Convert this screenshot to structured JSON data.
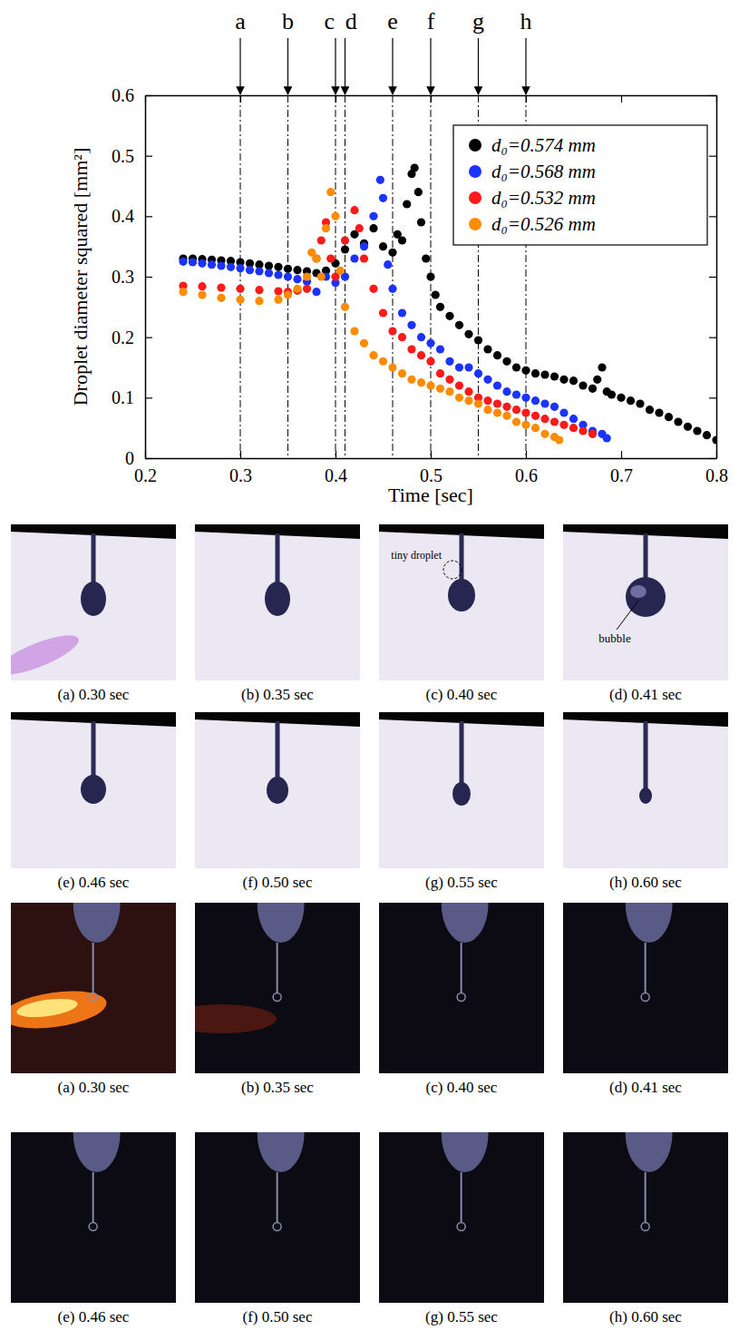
{
  "chart_data": {
    "type": "scatter",
    "xlabel": "Time [sec]",
    "ylabel": "Droplet diameter squared [mm²]",
    "xlim": [
      0.2,
      0.8
    ],
    "ylim": [
      0,
      0.6
    ],
    "xticks": [
      0.2,
      0.3,
      0.4,
      0.5,
      0.6,
      0.7,
      0.8
    ],
    "yticks": [
      0,
      0.1,
      0.2,
      0.3,
      0.4,
      0.5,
      0.6
    ],
    "legend": "upper right",
    "marker": "circle",
    "series": [
      {
        "name": "d₀=0.574 mm",
        "color": "#000000",
        "x": [
          0.24,
          0.25,
          0.26,
          0.27,
          0.28,
          0.29,
          0.3,
          0.31,
          0.32,
          0.33,
          0.34,
          0.35,
          0.36,
          0.37,
          0.38,
          0.39,
          0.4,
          0.41,
          0.42,
          0.43,
          0.44,
          0.45,
          0.46,
          0.465,
          0.47,
          0.475,
          0.48,
          0.483,
          0.487,
          0.49,
          0.495,
          0.5,
          0.505,
          0.51,
          0.52,
          0.53,
          0.54,
          0.55,
          0.56,
          0.57,
          0.58,
          0.59,
          0.6,
          0.61,
          0.62,
          0.63,
          0.64,
          0.65,
          0.66,
          0.67,
          0.675,
          0.68,
          0.685,
          0.69,
          0.7,
          0.71,
          0.72,
          0.73,
          0.74,
          0.75,
          0.76,
          0.77,
          0.78,
          0.79,
          0.8
        ],
        "values": [
          0.33,
          0.33,
          0.329,
          0.328,
          0.327,
          0.326,
          0.324,
          0.322,
          0.32,
          0.318,
          0.316,
          0.313,
          0.311,
          0.309,
          0.306,
          0.31,
          0.322,
          0.345,
          0.37,
          0.355,
          0.38,
          0.35,
          0.34,
          0.37,
          0.36,
          0.42,
          0.47,
          0.48,
          0.44,
          0.39,
          0.33,
          0.3,
          0.27,
          0.25,
          0.235,
          0.22,
          0.205,
          0.195,
          0.18,
          0.17,
          0.16,
          0.15,
          0.145,
          0.14,
          0.138,
          0.135,
          0.13,
          0.128,
          0.12,
          0.115,
          0.13,
          0.15,
          0.11,
          0.105,
          0.1,
          0.095,
          0.09,
          0.08,
          0.075,
          0.068,
          0.06,
          0.052,
          0.045,
          0.038,
          0.03
        ]
      },
      {
        "name": "d₀=0.568 mm",
        "color": "#1a33ff",
        "x": [
          0.24,
          0.25,
          0.26,
          0.27,
          0.28,
          0.29,
          0.3,
          0.31,
          0.32,
          0.33,
          0.34,
          0.35,
          0.36,
          0.37,
          0.38,
          0.39,
          0.4,
          0.41,
          0.42,
          0.43,
          0.44,
          0.447,
          0.45,
          0.455,
          0.46,
          0.47,
          0.48,
          0.49,
          0.5,
          0.51,
          0.52,
          0.53,
          0.54,
          0.55,
          0.56,
          0.57,
          0.58,
          0.59,
          0.6,
          0.61,
          0.62,
          0.63,
          0.64,
          0.65,
          0.66,
          0.67,
          0.68,
          0.685
        ],
        "values": [
          0.325,
          0.324,
          0.322,
          0.32,
          0.318,
          0.316,
          0.314,
          0.311,
          0.309,
          0.306,
          0.303,
          0.3,
          0.296,
          0.292,
          0.275,
          0.3,
          0.29,
          0.3,
          0.33,
          0.35,
          0.4,
          0.46,
          0.43,
          0.32,
          0.28,
          0.24,
          0.22,
          0.2,
          0.19,
          0.18,
          0.16,
          0.15,
          0.15,
          0.14,
          0.13,
          0.12,
          0.11,
          0.105,
          0.1,
          0.095,
          0.09,
          0.085,
          0.075,
          0.065,
          0.055,
          0.045,
          0.04,
          0.033
        ]
      },
      {
        "name": "d₀=0.532 mm",
        "color": "#ff1a1a",
        "x": [
          0.24,
          0.26,
          0.28,
          0.3,
          0.32,
          0.34,
          0.35,
          0.36,
          0.37,
          0.38,
          0.385,
          0.39,
          0.395,
          0.4,
          0.41,
          0.42,
          0.425,
          0.43,
          0.44,
          0.45,
          0.46,
          0.47,
          0.48,
          0.49,
          0.5,
          0.51,
          0.52,
          0.53,
          0.54,
          0.55,
          0.56,
          0.57,
          0.58,
          0.59,
          0.6,
          0.61,
          0.62,
          0.63,
          0.64,
          0.65,
          0.66,
          0.67
        ],
        "values": [
          0.285,
          0.284,
          0.282,
          0.28,
          0.278,
          0.276,
          0.275,
          0.277,
          0.28,
          0.33,
          0.36,
          0.39,
          0.33,
          0.3,
          0.36,
          0.41,
          0.38,
          0.33,
          0.28,
          0.24,
          0.21,
          0.2,
          0.18,
          0.17,
          0.16,
          0.14,
          0.13,
          0.12,
          0.11,
          0.1,
          0.095,
          0.09,
          0.085,
          0.08,
          0.075,
          0.07,
          0.065,
          0.06,
          0.055,
          0.05,
          0.045,
          0.04
        ]
      },
      {
        "name": "d₀=0.526 mm",
        "color": "#ff8c00",
        "x": [
          0.24,
          0.26,
          0.28,
          0.3,
          0.32,
          0.34,
          0.35,
          0.36,
          0.37,
          0.375,
          0.38,
          0.385,
          0.39,
          0.395,
          0.4,
          0.405,
          0.41,
          0.42,
          0.43,
          0.44,
          0.45,
          0.46,
          0.47,
          0.48,
          0.49,
          0.5,
          0.51,
          0.52,
          0.53,
          0.54,
          0.55,
          0.56,
          0.57,
          0.58,
          0.59,
          0.6,
          0.61,
          0.62,
          0.63,
          0.635
        ],
        "values": [
          0.275,
          0.27,
          0.265,
          0.262,
          0.26,
          0.262,
          0.27,
          0.28,
          0.3,
          0.34,
          0.33,
          0.3,
          0.38,
          0.44,
          0.4,
          0.31,
          0.25,
          0.21,
          0.19,
          0.17,
          0.16,
          0.15,
          0.14,
          0.13,
          0.125,
          0.12,
          0.115,
          0.11,
          0.1,
          0.095,
          0.09,
          0.08,
          0.075,
          0.07,
          0.06,
          0.055,
          0.05,
          0.04,
          0.035,
          0.03
        ]
      }
    ],
    "annotations": [
      {
        "text": "a",
        "x": 0.3
      },
      {
        "text": "b",
        "x": 0.35
      },
      {
        "text": "c",
        "x": 0.4
      },
      {
        "text": "d",
        "x": 0.41
      },
      {
        "text": "e",
        "x": 0.46
      },
      {
        "text": "f",
        "x": 0.5
      },
      {
        "text": "g",
        "x": 0.55
      },
      {
        "text": "h",
        "x": 0.6
      }
    ]
  },
  "photo_sets": [
    {
      "panels": [
        {
          "caption": "(a) 0.30 sec"
        },
        {
          "caption": "(b) 0.35 sec"
        },
        {
          "caption": "(c) 0.40 sec",
          "label": "tiny droplet"
        },
        {
          "caption": "(d) 0.41 sec",
          "label": "bubble"
        },
        {
          "caption": "(e) 0.46 sec"
        },
        {
          "caption": "(f) 0.50 sec"
        },
        {
          "caption": "(g) 0.55 sec"
        },
        {
          "caption": "(h) 0.60 sec"
        }
      ]
    },
    {
      "panels": [
        {
          "caption": "(a) 0.30 sec"
        },
        {
          "caption": "(b) 0.35 sec"
        },
        {
          "caption": "(c) 0.40 sec"
        },
        {
          "caption": "(d) 0.41 sec"
        },
        {
          "caption": "(e) 0.46 sec"
        },
        {
          "caption": "(f) 0.50 sec"
        },
        {
          "caption": "(g) 0.55 sec"
        },
        {
          "caption": "(h) 0.60 sec"
        }
      ]
    }
  ]
}
